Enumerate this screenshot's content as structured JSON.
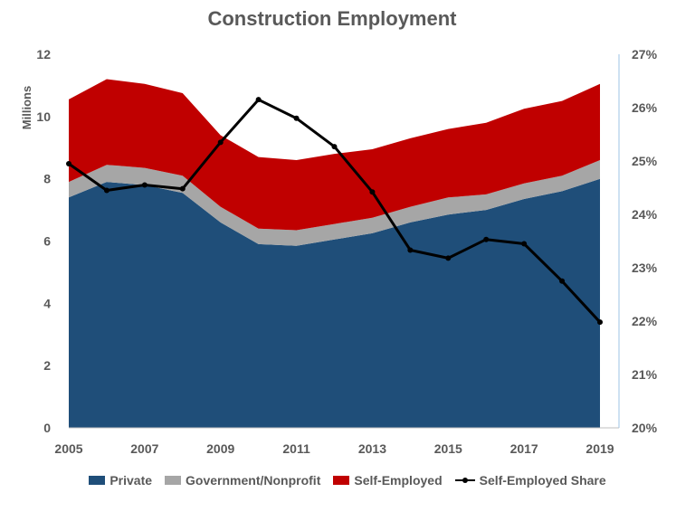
{
  "chart_data": {
    "type": "area",
    "title": "Construction Employment",
    "ylabel": "Millions",
    "y2label": "",
    "x": [
      2005,
      2006,
      2007,
      2008,
      2009,
      2010,
      2011,
      2012,
      2013,
      2014,
      2015,
      2016,
      2017,
      2018,
      2019
    ],
    "x_tick_labels": [
      "2005",
      "2007",
      "2009",
      "2011",
      "2013",
      "2015",
      "2017",
      "2019"
    ],
    "ylim": [
      0,
      12
    ],
    "y_tick_labels": [
      "0",
      "2",
      "4",
      "6",
      "8",
      "10",
      "12"
    ],
    "y2lim": [
      20,
      27
    ],
    "y2_tick_labels": [
      "20%",
      "21%",
      "22%",
      "23%",
      "24%",
      "25%",
      "26%",
      "27%"
    ],
    "series": [
      {
        "name": "Private",
        "kind": "stacked-area",
        "axis": "left",
        "color": "#1F4E79",
        "values": [
          7.4,
          7.9,
          7.8,
          7.55,
          6.6,
          5.9,
          5.85,
          6.05,
          6.25,
          6.6,
          6.85,
          7.0,
          7.35,
          7.6,
          8.0
        ]
      },
      {
        "name": "Government/Nonprofit",
        "kind": "stacked-area",
        "axis": "left",
        "color": "#A6A6A6",
        "values": [
          0.5,
          0.55,
          0.55,
          0.55,
          0.5,
          0.5,
          0.5,
          0.5,
          0.5,
          0.5,
          0.55,
          0.5,
          0.5,
          0.5,
          0.6
        ]
      },
      {
        "name": "Self-Employed",
        "kind": "stacked-area",
        "axis": "left",
        "color": "#C00000",
        "values": [
          2.65,
          2.75,
          2.7,
          2.65,
          2.3,
          2.3,
          2.25,
          2.25,
          2.2,
          2.2,
          2.2,
          2.3,
          2.4,
          2.4,
          2.45
        ]
      },
      {
        "name": "Self-Employed Share",
        "kind": "line",
        "axis": "right",
        "color": "#000000",
        "values": [
          24.95,
          24.45,
          24.55,
          24.48,
          25.35,
          26.15,
          25.8,
          25.27,
          24.42,
          23.33,
          23.18,
          23.53,
          23.45,
          22.75,
          21.98
        ]
      }
    ],
    "legend_position": "bottom",
    "grid": false
  }
}
